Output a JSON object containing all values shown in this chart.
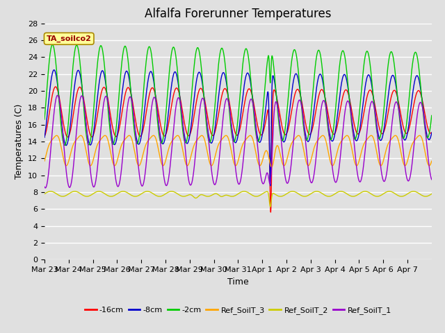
{
  "title": "Alfalfa Forerunner Temperatures",
  "xlabel": "Time",
  "ylabel": "Temperatures (C)",
  "annotation": "TA_soilco2",
  "ylim": [
    0,
    28
  ],
  "xlim_days": 16,
  "xtick_labels": [
    "Mar 23",
    "Mar 24",
    "Mar 25",
    "Mar 26",
    "Mar 27",
    "Mar 28",
    "Mar 29",
    "Mar 30",
    "Mar 31",
    "Apr 1",
    "Apr 2",
    "Apr 3",
    "Apr 4",
    "Apr 5",
    "Apr 6",
    "Apr 7"
  ],
  "series": {
    "m16cm": {
      "label": "-16cm",
      "color": "#FF0000"
    },
    "m8cm": {
      "label": "-8cm",
      "color": "#0000CC"
    },
    "m2cm": {
      "label": "-2cm",
      "color": "#00CC00"
    },
    "ref3": {
      "label": "Ref_SoilT_3",
      "color": "#FFA500"
    },
    "ref2": {
      "label": "Ref_SoilT_2",
      "color": "#CCCC00"
    },
    "ref1": {
      "label": "Ref_SoilT_1",
      "color": "#9900CC"
    }
  },
  "background_color": "#E0E0E0",
  "grid_color": "#FFFFFF",
  "title_fontsize": 12,
  "axis_fontsize": 9,
  "tick_fontsize": 8
}
